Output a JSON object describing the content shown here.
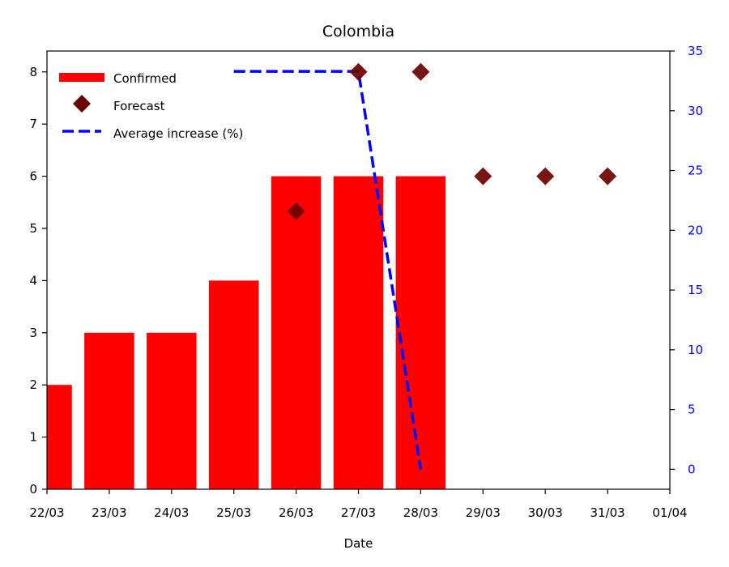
{
  "chart_data": {
    "type": "bar",
    "title": "Colombia",
    "xlabel": "Date",
    "ylabel": "",
    "ylabel_right": "",
    "x_ticks": [
      "22/03",
      "23/03",
      "24/03",
      "25/03",
      "26/03",
      "27/03",
      "28/03",
      "29/03",
      "30/03",
      "31/03",
      "01/04"
    ],
    "ylim": [
      0,
      8.4
    ],
    "y_ticks": [
      0,
      1,
      2,
      3,
      4,
      5,
      6,
      7,
      8
    ],
    "ylim_right": [
      -1.67,
      35
    ],
    "y_ticks_right": [
      0,
      5,
      10,
      15,
      20,
      25,
      30,
      35
    ],
    "right_axis_color": "#0000ff",
    "series": [
      {
        "name": "Confirmed",
        "kind": "bar",
        "color": "#ff0000",
        "x": [
          "22/03",
          "23/03",
          "24/03",
          "25/03",
          "26/03",
          "27/03",
          "28/03"
        ],
        "values": [
          2,
          3,
          3,
          4,
          6,
          6,
          6
        ]
      },
      {
        "name": "Forecast",
        "kind": "scatter",
        "marker": "diamond",
        "color": "#6b0000",
        "x": [
          "26/03",
          "27/03",
          "28/03",
          "29/03",
          "30/03",
          "31/03"
        ],
        "values": [
          5.33,
          8,
          8,
          6,
          6,
          6
        ]
      },
      {
        "name": "Average increase (%)",
        "kind": "line",
        "style": "dashed",
        "color": "#0000ff",
        "axis": "right",
        "x": [
          "25/03",
          "26/03",
          "27/03",
          "28/03"
        ],
        "values": [
          33.3,
          33.3,
          33.3,
          0
        ]
      }
    ],
    "legend_position": "top-left",
    "grid": false
  }
}
